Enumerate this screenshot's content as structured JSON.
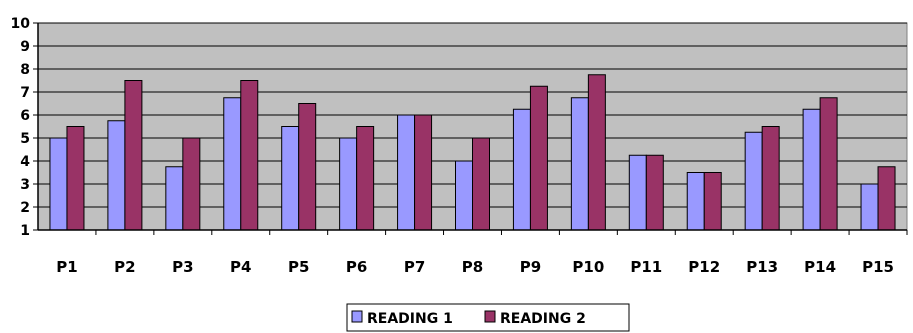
{
  "chart_data": {
    "type": "bar",
    "categories": [
      "P1",
      "P2",
      "P3",
      "P4",
      "P5",
      "P6",
      "P7",
      "P8",
      "P9",
      "P10",
      "P11",
      "P12",
      "P13",
      "P14",
      "P15"
    ],
    "series": [
      {
        "name": "READING 1",
        "values": [
          5,
          5.75,
          3.75,
          6.75,
          5.5,
          5,
          6,
          4,
          6.25,
          6.75,
          4.25,
          3.5,
          5.25,
          6.25,
          3
        ]
      },
      {
        "name": "READING 2",
        "values": [
          5.5,
          7.5,
          5,
          7.5,
          6.5,
          5.5,
          6,
          5,
          7.25,
          7.75,
          4.25,
          3.5,
          5.5,
          6.75,
          3.75
        ]
      }
    ],
    "ylim": [
      1,
      10
    ],
    "yticks": [
      "1",
      "2",
      "3",
      "4",
      "5",
      "6",
      "7",
      "8",
      "9",
      "10"
    ],
    "grid": true,
    "legend": "bottom",
    "colors": {
      "plot_background": "#c0c0c0",
      "series": [
        "#9999ff",
        "#993366"
      ],
      "gridline": "#000000"
    }
  }
}
